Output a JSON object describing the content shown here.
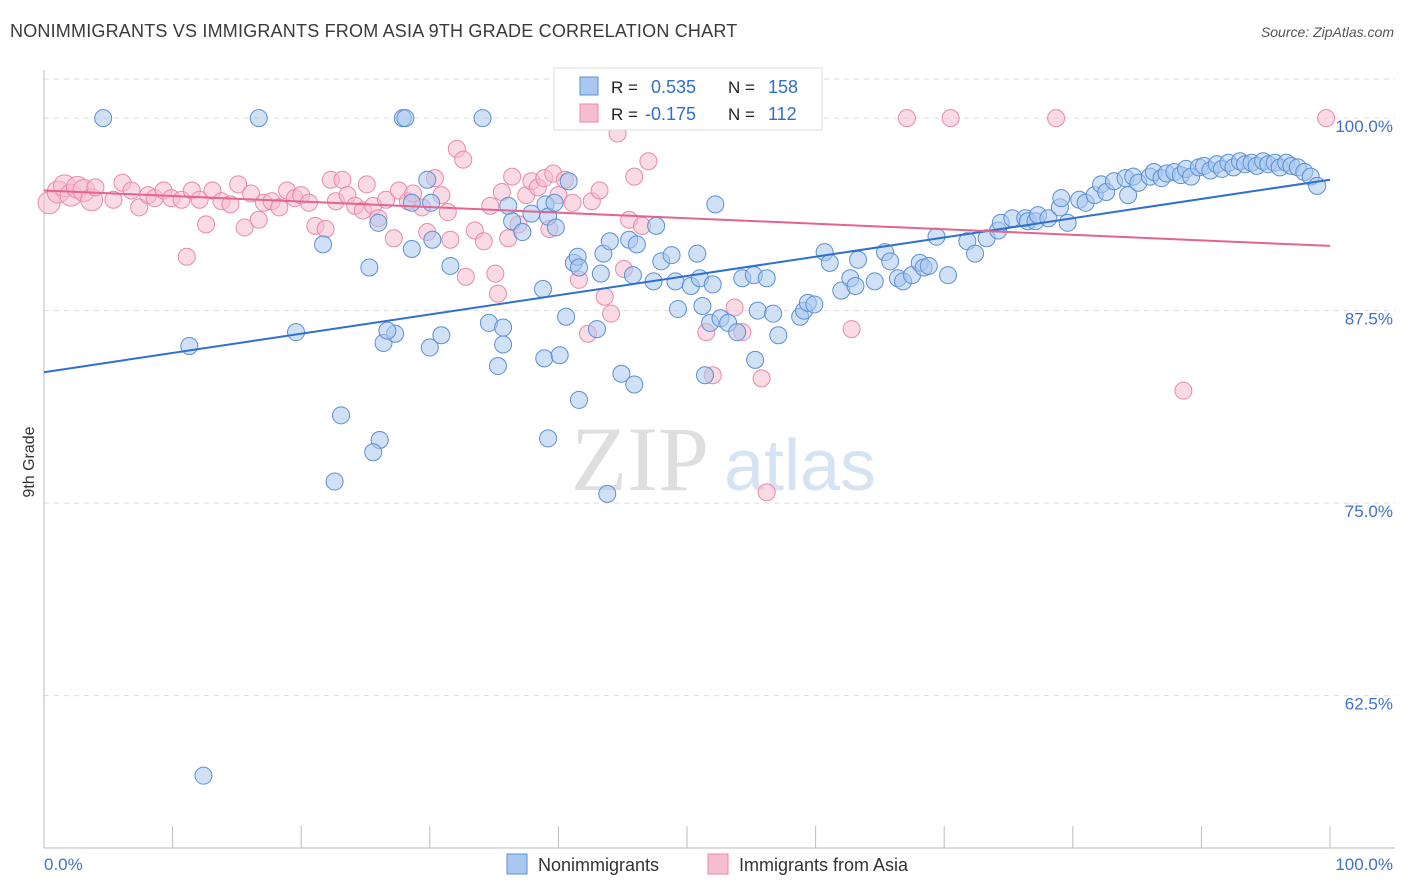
{
  "header": {
    "title": "NONIMMIGRANTS VS IMMIGRANTS FROM ASIA 9TH GRADE CORRELATION CHART",
    "source": "Source: ZipAtlas.com"
  },
  "watermark": {
    "zip": "ZIP",
    "atlas": "atlas"
  },
  "colors": {
    "blue_fill": "#a9c8ef",
    "blue_stroke": "#5b8fd6",
    "blue_line": "#2f6fd0",
    "pink_fill": "#f6bcd0",
    "pink_stroke": "#e88aa8",
    "pink_line": "#e2648f",
    "tick_label": "#3f72c9",
    "grid": "#dcdcdc"
  },
  "legend_box": {
    "rows": [
      {
        "r_label": "R =",
        "r_value": "0.535",
        "n_label": "N =",
        "n_value": "158",
        "series": "blue"
      },
      {
        "r_label": "R =",
        "r_value": "-0.175",
        "n_label": "N =",
        "n_value": "112",
        "series": "pink"
      }
    ]
  },
  "chart_data": {
    "type": "scatter",
    "title": "NONIMMIGRANTS VS IMMIGRANTS FROM ASIA 9TH GRADE CORRELATION CHART",
    "xlabel": "",
    "ylabel": "9th Grade",
    "xlim": [
      0,
      100
    ],
    "ylim": [
      52.5,
      101.5
    ],
    "x_tick_labels": [
      "0.0%",
      "100.0%"
    ],
    "y_ticks": [
      62.5,
      75.0,
      87.5,
      100.0
    ],
    "y_tick_labels": [
      "62.5%",
      "75.0%",
      "87.5%",
      "100.0%"
    ],
    "grid": true,
    "legend": [
      "Nonimmigrants",
      "Immigrants from Asia"
    ],
    "legend_position": "bottom",
    "series": [
      {
        "name": "Nonimmigrants",
        "color": "#a9c8ef",
        "trend": {
          "x": [
            0,
            100
          ],
          "y": [
            83.5,
            96.0
          ]
        },
        "points": [
          [
            4.6,
            100
          ],
          [
            16.7,
            100
          ],
          [
            27.9,
            100
          ],
          [
            28.1,
            100
          ],
          [
            34.1,
            100
          ],
          [
            11.3,
            85.2
          ],
          [
            19.6,
            86.1
          ],
          [
            21.7,
            91.8
          ],
          [
            23.1,
            80.7
          ],
          [
            26.4,
            85.4
          ],
          [
            25.3,
            90.3
          ],
          [
            26.1,
            79.1
          ],
          [
            26.0,
            93.2
          ],
          [
            27.3,
            86.0
          ],
          [
            26.7,
            86.2
          ],
          [
            25.6,
            78.3
          ],
          [
            22.6,
            76.4
          ],
          [
            28.6,
            94.5
          ],
          [
            28.6,
            91.5
          ],
          [
            29.8,
            96.0
          ],
          [
            30.1,
            94.5
          ],
          [
            30.2,
            92.1
          ],
          [
            30.0,
            85.1
          ],
          [
            30.9,
            85.9
          ],
          [
            31.6,
            90.4
          ],
          [
            34.6,
            86.7
          ],
          [
            35.3,
            83.9
          ],
          [
            35.7,
            85.3
          ],
          [
            35.7,
            86.4
          ],
          [
            36.1,
            94.3
          ],
          [
            36.4,
            93.3
          ],
          [
            37.2,
            92.6
          ],
          [
            37.9,
            93.8
          ],
          [
            38.9,
            84.4
          ],
          [
            39.0,
            94.4
          ],
          [
            39.2,
            93.6
          ],
          [
            39.2,
            79.2
          ],
          [
            39.7,
            94.5
          ],
          [
            39.8,
            92.9
          ],
          [
            40.1,
            84.6
          ],
          [
            40.6,
            87.1
          ],
          [
            40.8,
            95.9
          ],
          [
            41.2,
            90.6
          ],
          [
            41.5,
            91.0
          ],
          [
            41.6,
            81.7
          ],
          [
            43.0,
            86.3
          ],
          [
            43.3,
            89.9
          ],
          [
            43.5,
            91.2
          ],
          [
            44.0,
            92.0
          ],
          [
            44.9,
            83.4
          ],
          [
            45.5,
            92.1
          ],
          [
            45.8,
            89.8
          ],
          [
            45.9,
            82.7
          ],
          [
            46.1,
            91.8
          ],
          [
            47.4,
            89.4
          ],
          [
            47.6,
            93.0
          ],
          [
            48.0,
            90.7
          ],
          [
            48.8,
            91.1
          ],
          [
            49.1,
            89.4
          ],
          [
            49.3,
            87.6
          ],
          [
            50.3,
            89.1
          ],
          [
            50.8,
            91.2
          ],
          [
            51.0,
            89.6
          ],
          [
            51.2,
            87.8
          ],
          [
            51.4,
            83.3
          ],
          [
            51.8,
            86.7
          ],
          [
            52.0,
            89.2
          ],
          [
            52.2,
            94.4
          ],
          [
            52.6,
            87.0
          ],
          [
            53.2,
            86.7
          ],
          [
            53.9,
            86.1
          ],
          [
            54.3,
            89.6
          ],
          [
            55.2,
            89.8
          ],
          [
            55.3,
            84.3
          ],
          [
            55.5,
            87.5
          ],
          [
            56.2,
            89.6
          ],
          [
            56.7,
            87.3
          ],
          [
            57.1,
            85.9
          ],
          [
            58.8,
            87.1
          ],
          [
            59.1,
            87.5
          ],
          [
            59.4,
            88.0
          ],
          [
            59.9,
            87.9
          ],
          [
            60.7,
            91.3
          ],
          [
            61.1,
            90.6
          ],
          [
            62.0,
            88.8
          ],
          [
            62.7,
            89.6
          ],
          [
            63.1,
            89.1
          ],
          [
            63.3,
            90.8
          ],
          [
            64.6,
            89.4
          ],
          [
            65.4,
            91.3
          ],
          [
            65.8,
            90.7
          ],
          [
            66.4,
            89.6
          ],
          [
            66.8,
            89.4
          ],
          [
            67.5,
            89.8
          ],
          [
            68.1,
            90.6
          ],
          [
            68.4,
            90.3
          ],
          [
            68.8,
            90.4
          ],
          [
            69.4,
            92.3
          ],
          [
            70.3,
            89.8
          ],
          [
            71.8,
            92.0
          ],
          [
            72.4,
            91.2
          ],
          [
            73.3,
            92.2
          ],
          [
            74.2,
            92.7
          ],
          [
            74.4,
            93.2
          ],
          [
            75.3,
            93.5
          ],
          [
            76.3,
            93.5
          ],
          [
            76.5,
            93.3
          ],
          [
            77.1,
            93.3
          ],
          [
            77.3,
            93.7
          ],
          [
            78.1,
            93.5
          ],
          [
            79.0,
            94.2
          ],
          [
            79.1,
            94.8
          ],
          [
            79.6,
            93.2
          ],
          [
            80.5,
            94.7
          ],
          [
            81.0,
            94.5
          ],
          [
            81.7,
            95.0
          ],
          [
            82.2,
            95.7
          ],
          [
            82.6,
            95.2
          ],
          [
            83.2,
            95.9
          ],
          [
            84.1,
            96.1
          ],
          [
            84.3,
            95.0
          ],
          [
            84.7,
            96.2
          ],
          [
            85.1,
            95.8
          ],
          [
            86.0,
            96.2
          ],
          [
            86.3,
            96.5
          ],
          [
            86.9,
            96.1
          ],
          [
            87.3,
            96.4
          ],
          [
            87.9,
            96.5
          ],
          [
            88.4,
            96.3
          ],
          [
            88.8,
            96.7
          ],
          [
            89.2,
            96.2
          ],
          [
            89.8,
            96.8
          ],
          [
            90.2,
            96.9
          ],
          [
            90.7,
            96.6
          ],
          [
            91.2,
            97.0
          ],
          [
            91.6,
            96.7
          ],
          [
            92.1,
            97.1
          ],
          [
            92.5,
            96.8
          ],
          [
            93.0,
            97.2
          ],
          [
            93.4,
            97.0
          ],
          [
            93.9,
            97.1
          ],
          [
            94.3,
            96.9
          ],
          [
            94.8,
            97.2
          ],
          [
            95.2,
            97.0
          ],
          [
            95.7,
            97.1
          ],
          [
            96.1,
            96.8
          ],
          [
            96.6,
            97.1
          ],
          [
            97.0,
            96.9
          ],
          [
            97.5,
            96.8
          ],
          [
            98.0,
            96.5
          ],
          [
            98.5,
            96.2
          ],
          [
            99.0,
            95.6
          ],
          [
            12.4,
            57.3
          ],
          [
            43.8,
            75.6
          ],
          [
            38.8,
            88.9
          ],
          [
            41.6,
            90.3
          ]
        ]
      },
      {
        "name": "Immigrants from Asia",
        "color": "#f6bcd0",
        "trend": {
          "x": [
            0,
            100
          ],
          "y": [
            95.3,
            91.7
          ]
        },
        "points": [
          [
            0.4,
            94.5
          ],
          [
            1.1,
            95.2
          ],
          [
            1.6,
            95.6
          ],
          [
            2.1,
            95.0
          ],
          [
            2.6,
            95.5
          ],
          [
            3.1,
            95.3
          ],
          [
            3.7,
            94.7
          ],
          [
            4.0,
            95.5
          ],
          [
            5.4,
            94.7
          ],
          [
            6.1,
            95.8
          ],
          [
            6.8,
            95.3
          ],
          [
            7.4,
            94.2
          ],
          [
            8.1,
            95.0
          ],
          [
            8.6,
            94.8
          ],
          [
            9.3,
            95.3
          ],
          [
            9.9,
            94.8
          ],
          [
            10.7,
            94.7
          ],
          [
            11.1,
            91.0
          ],
          [
            11.5,
            95.3
          ],
          [
            12.1,
            94.7
          ],
          [
            12.6,
            93.1
          ],
          [
            13.1,
            95.3
          ],
          [
            13.8,
            94.6
          ],
          [
            14.5,
            94.4
          ],
          [
            15.1,
            95.7
          ],
          [
            15.6,
            92.9
          ],
          [
            16.1,
            95.1
          ],
          [
            16.7,
            93.4
          ],
          [
            17.1,
            94.5
          ],
          [
            17.7,
            94.6
          ],
          [
            18.3,
            94.2
          ],
          [
            18.9,
            95.3
          ],
          [
            19.5,
            94.8
          ],
          [
            20.0,
            95.0
          ],
          [
            20.6,
            94.5
          ],
          [
            21.1,
            93.0
          ],
          [
            21.9,
            92.8
          ],
          [
            22.3,
            96.0
          ],
          [
            22.7,
            94.6
          ],
          [
            23.2,
            96.0
          ],
          [
            23.6,
            95.0
          ],
          [
            24.2,
            94.3
          ],
          [
            24.8,
            94.0
          ],
          [
            25.1,
            95.7
          ],
          [
            25.6,
            94.3
          ],
          [
            26.0,
            93.5
          ],
          [
            26.6,
            94.7
          ],
          [
            27.2,
            92.2
          ],
          [
            27.6,
            95.3
          ],
          [
            28.3,
            94.6
          ],
          [
            28.7,
            95.1
          ],
          [
            29.4,
            94.2
          ],
          [
            29.8,
            92.6
          ],
          [
            30.4,
            96.1
          ],
          [
            30.9,
            95.0
          ],
          [
            31.4,
            93.9
          ],
          [
            31.6,
            92.1
          ],
          [
            32.1,
            98.0
          ],
          [
            32.6,
            97.3
          ],
          [
            32.8,
            89.7
          ],
          [
            33.5,
            92.7
          ],
          [
            34.2,
            92.0
          ],
          [
            34.7,
            94.3
          ],
          [
            35.1,
            89.9
          ],
          [
            35.3,
            88.6
          ],
          [
            35.6,
            95.2
          ],
          [
            36.1,
            92.2
          ],
          [
            36.4,
            96.2
          ],
          [
            36.9,
            93.1
          ],
          [
            37.5,
            95.0
          ],
          [
            37.9,
            95.9
          ],
          [
            38.4,
            95.5
          ],
          [
            38.9,
            96.1
          ],
          [
            39.3,
            92.8
          ],
          [
            39.6,
            96.4
          ],
          [
            40.0,
            95.0
          ],
          [
            40.5,
            96.0
          ],
          [
            41.1,
            94.5
          ],
          [
            41.6,
            89.5
          ],
          [
            42.3,
            86.0
          ],
          [
            42.6,
            94.6
          ],
          [
            43.2,
            95.3
          ],
          [
            43.6,
            88.4
          ],
          [
            44.1,
            87.3
          ],
          [
            44.6,
            99.0
          ],
          [
            45.1,
            90.2
          ],
          [
            45.5,
            93.4
          ],
          [
            45.9,
            96.2
          ],
          [
            46.5,
            93.0
          ],
          [
            47.0,
            97.2
          ],
          [
            51.5,
            86.1
          ],
          [
            52.0,
            83.3
          ],
          [
            53.7,
            87.7
          ],
          [
            54.3,
            86.1
          ],
          [
            55.8,
            83.1
          ],
          [
            56.2,
            75.7
          ],
          [
            59.1,
            100
          ],
          [
            62.8,
            86.3
          ],
          [
            67.1,
            100
          ],
          [
            70.5,
            100
          ],
          [
            78.7,
            100
          ],
          [
            88.6,
            82.3
          ],
          [
            99.7,
            100
          ],
          [
            52.9,
            100
          ]
        ]
      }
    ]
  },
  "bottom_legend": {
    "items": [
      {
        "label": "Nonimmigrants",
        "series": "blue"
      },
      {
        "label": "Immigrants from Asia",
        "series": "pink"
      }
    ]
  }
}
